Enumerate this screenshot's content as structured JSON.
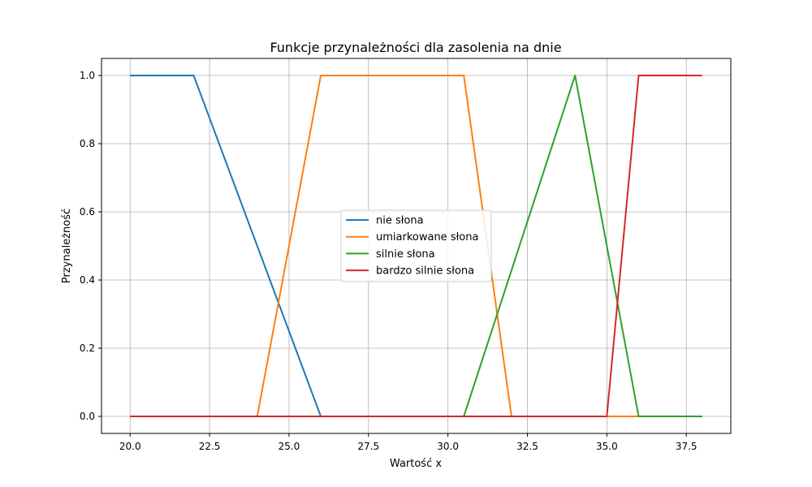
{
  "chart_data": {
    "type": "line",
    "title": "Funkcje przynależności dla zasolenia na dnie",
    "xlabel": "Wartość x",
    "ylabel": "Przynależność",
    "xlim": [
      19.1,
      38.9
    ],
    "ylim": [
      -0.05,
      1.05
    ],
    "xticks": [
      20.0,
      22.5,
      25.0,
      27.5,
      30.0,
      32.5,
      35.0,
      37.5
    ],
    "xtick_labels": [
      "20.0",
      "22.5",
      "25.0",
      "27.5",
      "30.0",
      "32.5",
      "35.0",
      "37.5"
    ],
    "yticks": [
      0.0,
      0.2,
      0.4,
      0.6,
      0.8,
      1.0
    ],
    "ytick_labels": [
      "0.0",
      "0.2",
      "0.4",
      "0.6",
      "0.8",
      "1.0"
    ],
    "grid": true,
    "legend_position": "center",
    "series": [
      {
        "name": "nie słona",
        "color": "#1f77b4",
        "x": [
          20,
          22,
          26,
          38
        ],
        "y": [
          1,
          1,
          0,
          0
        ]
      },
      {
        "name": "umiarkowane słona",
        "color": "#ff7f0e",
        "x": [
          20,
          24,
          26,
          30.5,
          32,
          38
        ],
        "y": [
          0,
          0,
          1,
          1,
          0,
          0
        ]
      },
      {
        "name": "silnie słona",
        "color": "#2ca02c",
        "x": [
          20,
          30.5,
          34,
          36,
          38
        ],
        "y": [
          0,
          0,
          1,
          0,
          0
        ]
      },
      {
        "name": "bardzo silnie słona",
        "color": "#d62728",
        "x": [
          20,
          35,
          36,
          38
        ],
        "y": [
          0,
          0,
          1,
          1
        ]
      }
    ]
  }
}
